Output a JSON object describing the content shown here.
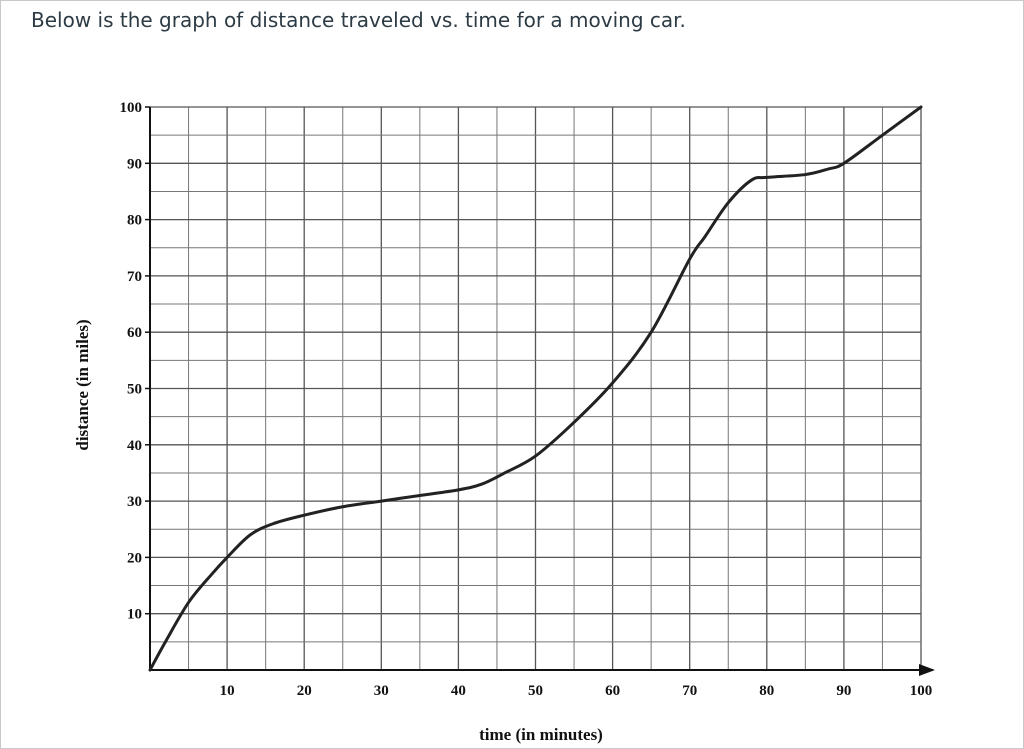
{
  "question": {
    "prompt": "Below is the graph of distance traveled vs. time for a moving car."
  },
  "chart_data": {
    "type": "line",
    "title": "",
    "xlabel": "time (in minutes)",
    "ylabel": "distance (in miles)",
    "xlim": [
      0,
      100
    ],
    "ylim": [
      0,
      100
    ],
    "x_ticks": [
      10,
      20,
      30,
      40,
      50,
      60,
      70,
      80,
      90,
      100
    ],
    "y_ticks": [
      10,
      20,
      30,
      40,
      50,
      60,
      70,
      80,
      90,
      100
    ],
    "grid": true,
    "series": [
      {
        "x": [
          0,
          2,
          5,
          8,
          10,
          13,
          16,
          20,
          25,
          30,
          35,
          40,
          43,
          46,
          50,
          55,
          60,
          65,
          70,
          72,
          75,
          78,
          80,
          85,
          88,
          90,
          95,
          100
        ],
        "y": [
          0,
          5,
          12,
          17,
          20,
          24,
          26,
          27.5,
          29,
          30,
          31,
          32,
          33,
          35,
          38,
          44,
          51,
          60,
          73,
          77,
          83,
          87,
          87.5,
          88,
          89,
          90,
          95,
          100
        ]
      }
    ]
  }
}
